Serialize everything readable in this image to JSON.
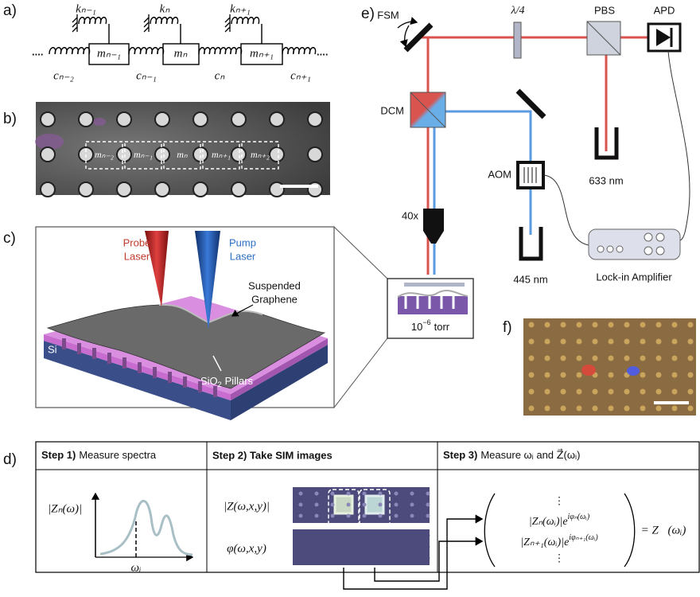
{
  "panel_labels": [
    "a)",
    "b)",
    "c)",
    "d)",
    "e)",
    "f)"
  ],
  "panel_a": {
    "springs_k": [
      "kₙ₋₁",
      "kₙ",
      "kₙ₊₁"
    ],
    "masses": [
      "mₙ₋₁",
      "mₙ",
      "mₙ₊₁"
    ],
    "dampers_c": [
      "cₙ₋₂",
      "cₙ₋₁",
      "cₙ",
      "cₙ₊₁"
    ],
    "ellipsis": "...."
  },
  "panel_b": {
    "masses": [
      "mₙ₋₂",
      "mₙ₋₁",
      "mₙ",
      "mₙ₊₁",
      "mₙ₊₂"
    ]
  },
  "panel_c": {
    "probe": [
      "Probe",
      "Laser"
    ],
    "pump": [
      "Pump",
      "Laser"
    ],
    "graphene": [
      "Suspended",
      "Graphene"
    ],
    "substrate": "Si",
    "pillars": {
      "base": "SiO",
      "sub": "2",
      "rest": "Pillars"
    }
  },
  "panel_e": {
    "fsm": "FSM",
    "waveplate": "λ/4",
    "pbs": "PBS",
    "apd": "APD",
    "dcm": "DCM",
    "aom": "AOM",
    "red_laser": "633 nm",
    "objective": "40x",
    "blue_laser": "445 nm",
    "lockin": "Lock-in Amplifier",
    "pressure": {
      "base": "10",
      "sup": "−6",
      "rest": "torr"
    }
  },
  "panel_d": {
    "steps": [
      {
        "bold": "Step 1)",
        "text": "Measure spectra"
      },
      {
        "bold": "Step 2) Take SIM images"
      },
      {
        "bold": "Step 3)",
        "text": "Measure ωᵢ and Z⃗(ωᵢ)"
      }
    ],
    "y_label": "|Zₙ(ω)|",
    "x_label": "ωᵢ",
    "amp_label": "|Z(ω,x,y)|",
    "phase_label": "φ(ω,x,y)",
    "vector_rows": [
      {
        "base": "|Zₙ(ωᵢ)|e",
        "sup": "iφₙ(ωᵢ)"
      },
      {
        "base": "|Zₙ₊₁(ωᵢ)|e",
        "sup": "iφₙ₊₁(ωᵢ)"
      }
    ],
    "vdots": "⋮",
    "result": "= Z⃗(ωᵢ)"
  }
}
